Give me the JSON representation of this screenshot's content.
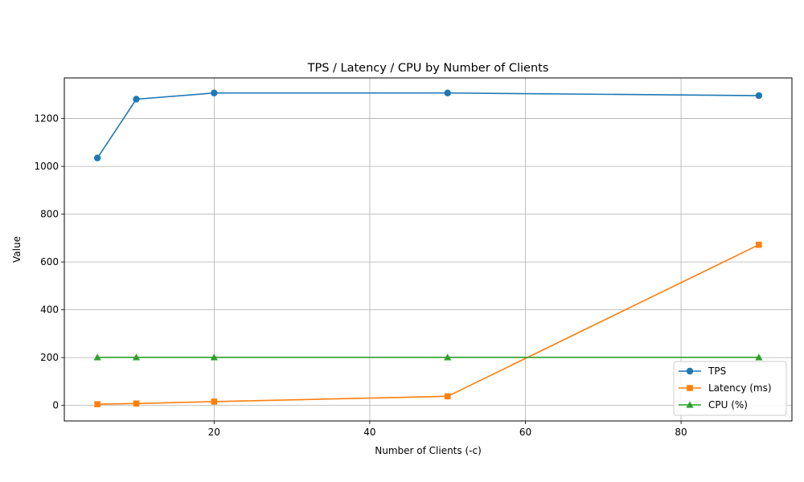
{
  "chart_data": {
    "type": "line",
    "title": "TPS / Latency / CPU by Number of Clients",
    "xlabel": "Number of Clients (-c)",
    "ylabel": "Value",
    "x": [
      5,
      10,
      20,
      50,
      90
    ],
    "xlim": [
      0.75,
      94.25
    ],
    "ylim": [
      -65,
      1370
    ],
    "xticks": [
      20,
      40,
      60,
      80
    ],
    "yticks": [
      0,
      200,
      400,
      600,
      800,
      1000,
      1200
    ],
    "grid": true,
    "legend_position": "lower-right",
    "series": [
      {
        "name": "TPS",
        "color": "#1f77b4",
        "marker": "circle",
        "values": [
          1035,
          1281,
          1307,
          1307,
          1296
        ]
      },
      {
        "name": "Latency (ms)",
        "color": "#ff7f0e",
        "marker": "square",
        "values": [
          5,
          8,
          16,
          38,
          672
        ]
      },
      {
        "name": "CPU (%)",
        "color": "#2ca02c",
        "marker": "triangle",
        "values": [
          201,
          201,
          201,
          201,
          201
        ]
      }
    ]
  }
}
